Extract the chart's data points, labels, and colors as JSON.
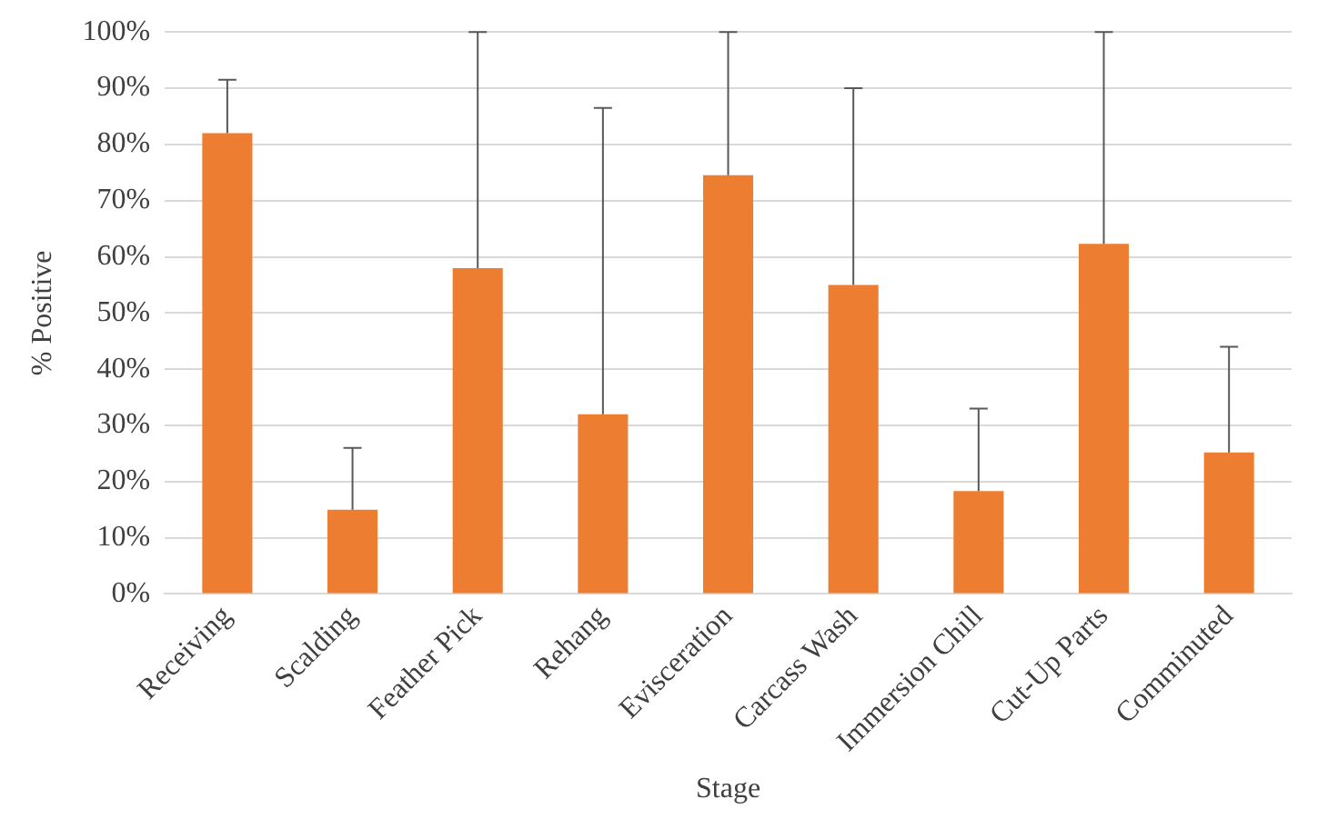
{
  "chart_data": {
    "type": "bar",
    "xlabel": "Stage",
    "ylabel": "% Positive",
    "categories": [
      "Receiving",
      "Scalding",
      "Feather Pick",
      "Rehang",
      "Evisceration",
      "Carcass Wash",
      "Immersion Chill",
      "Cut-Up Parts",
      "Comminuted"
    ],
    "values": [
      82,
      15,
      58,
      32,
      74.5,
      55,
      18.3,
      62.3,
      25.2
    ],
    "errors": [
      [
        82,
        91.5
      ],
      [
        15,
        26
      ],
      [
        58,
        100
      ],
      [
        32,
        86.5
      ],
      [
        74.5,
        100
      ],
      [
        55,
        90
      ],
      [
        18.3,
        33
      ],
      [
        62.3,
        100
      ],
      [
        25.2,
        44
      ]
    ],
    "color": "#ed7d31",
    "ylim": [
      0,
      100
    ],
    "yticks": [
      {
        "value": 0,
        "label": "0%"
      },
      {
        "value": 10,
        "label": "10%"
      },
      {
        "value": 20,
        "label": "20%"
      },
      {
        "value": 30,
        "label": "30%"
      },
      {
        "value": 40,
        "label": "40%"
      },
      {
        "value": 50,
        "label": "50%"
      },
      {
        "value": 60,
        "label": "60%"
      },
      {
        "value": 70,
        "label": "70%"
      },
      {
        "value": 80,
        "label": "80%"
      },
      {
        "value": 90,
        "label": "90%"
      },
      {
        "value": 100,
        "label": "100%"
      }
    ],
    "grid": "y",
    "legend": false
  }
}
